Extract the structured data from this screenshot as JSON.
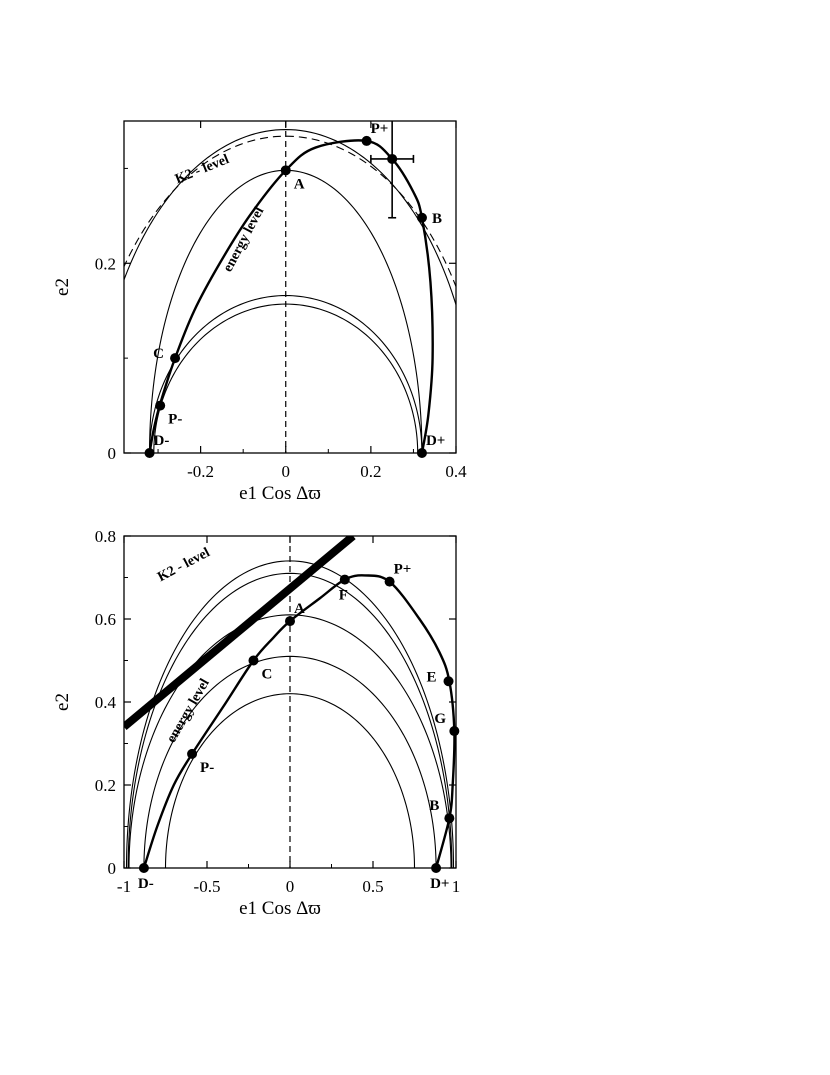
{
  "chart_data": [
    {
      "type": "line",
      "xlabel": "e1 Cos Δϖ",
      "ylabel": "e2",
      "xlim": [
        -0.38,
        0.4
      ],
      "ylim": [
        0,
        0.35
      ],
      "xticks": [
        -0.2,
        0,
        0.2,
        0.4
      ],
      "xtick_labels": [
        "-0.2",
        "0",
        "0.2",
        "0.4"
      ],
      "yticks": [
        0,
        0.2
      ],
      "ytick_labels": [
        "0",
        "0.2"
      ],
      "minor_xticks": [
        -0.3,
        -0.1,
        0.1,
        0.3
      ],
      "minor_yticks": [
        0.1,
        0.3
      ],
      "dashed_vertical_x": 0,
      "k2_arcs": [
        {
          "a": 0.32,
          "b": 0.298,
          "style": "solid"
        },
        {
          "a": 0.31,
          "b": 0.157,
          "style": "solid"
        },
        {
          "a": 0.32,
          "b": 0.166,
          "style": "solid"
        },
        {
          "a": 0.45,
          "b": 0.341,
          "style": "solid"
        },
        {
          "a": 0.47,
          "b": 0.334,
          "style": "dashed"
        }
      ],
      "energy_level": [
        [
          -0.32,
          0
        ],
        [
          -0.31,
          0.025
        ],
        [
          -0.295,
          0.052
        ],
        [
          -0.26,
          0.1
        ],
        [
          -0.215,
          0.15
        ],
        [
          -0.155,
          0.2
        ],
        [
          -0.085,
          0.25
        ],
        [
          0,
          0.298
        ],
        [
          0.07,
          0.322
        ],
        [
          0.19,
          0.329
        ],
        [
          0.25,
          0.31
        ],
        [
          0.3,
          0.275
        ],
        [
          0.32,
          0.248
        ],
        [
          0.34,
          0.18
        ],
        [
          0.345,
          0.1
        ],
        [
          0.335,
          0.04
        ],
        [
          0.32,
          0
        ]
      ],
      "points": [
        {
          "label": "A",
          "x": 0,
          "y": 0.298,
          "anchor": "right-below"
        },
        {
          "label": "P+",
          "x": 0.19,
          "y": 0.329,
          "anchor": "right-above"
        },
        {
          "label": "B",
          "x": 0.32,
          "y": 0.248,
          "anchor": "right"
        },
        {
          "label": "C",
          "x": -0.26,
          "y": 0.1,
          "anchor": "left"
        },
        {
          "label": "P-",
          "x": -0.295,
          "y": 0.05,
          "anchor": "right-below"
        },
        {
          "label": "D-",
          "x": -0.32,
          "y": 0,
          "anchor": "right-above"
        },
        {
          "label": "D+",
          "x": 0.32,
          "y": 0,
          "anchor": "right-above"
        }
      ],
      "observation": {
        "x": 0.25,
        "y": 0.31,
        "x_err": [
          0.2,
          0.3
        ],
        "y_err": [
          0.248,
          0.35
        ]
      },
      "annotations": [
        {
          "text": "K2 - level",
          "x": -0.255,
          "y": 0.284,
          "angle": -22
        },
        {
          "text": "energy level",
          "x": -0.13,
          "y": 0.19,
          "angle": -62
        }
      ]
    },
    {
      "type": "line",
      "xlabel": "e1 Cos Δϖ",
      "ylabel": "e2",
      "xlim": [
        -1,
        1
      ],
      "ylim": [
        0,
        0.8
      ],
      "xticks": [
        -1,
        -0.5,
        0,
        0.5,
        1
      ],
      "xtick_labels": [
        "-1",
        "-0.5",
        "0",
        "0.5",
        "1"
      ],
      "yticks": [
        0,
        0.2,
        0.4,
        0.6,
        0.8
      ],
      "ytick_labels": [
        "0",
        "0.2",
        "0.4",
        "0.6",
        "0.8"
      ],
      "minor_xticks": [
        -0.75,
        -0.25,
        0.25,
        0.75
      ],
      "minor_yticks": [
        0.1,
        0.3,
        0.5,
        0.7
      ],
      "dashed_vertical_x": 0,
      "k2_arcs": [
        {
          "a": 0.75,
          "b": 0.42,
          "style": "solid"
        },
        {
          "a": 0.88,
          "b": 0.51,
          "style": "solid"
        },
        {
          "a": 0.97,
          "b": 0.61,
          "style": "solid"
        },
        {
          "a": 0.975,
          "b": 0.71,
          "style": "solid"
        },
        {
          "a": 0.985,
          "b": 0.74,
          "style": "solid"
        }
      ],
      "energy_level": [
        [
          -0.88,
          0
        ],
        [
          -0.8,
          0.1
        ],
        [
          -0.7,
          0.2
        ],
        [
          -0.59,
          0.275
        ],
        [
          -0.4,
          0.39
        ],
        [
          -0.22,
          0.5
        ],
        [
          -0.1,
          0.555
        ],
        [
          0,
          0.595
        ],
        [
          0.18,
          0.65
        ],
        [
          0.33,
          0.695
        ],
        [
          0.45,
          0.705
        ],
        [
          0.6,
          0.69
        ],
        [
          0.78,
          0.6
        ],
        [
          0.9,
          0.52
        ],
        [
          0.96,
          0.45
        ],
        [
          0.99,
          0.33
        ],
        [
          0.98,
          0.2
        ],
        [
          0.96,
          0.12
        ],
        [
          0.88,
          0
        ]
      ],
      "points": [
        {
          "label": "A",
          "x": 0,
          "y": 0.595,
          "anchor": "right-above"
        },
        {
          "label": "C",
          "x": -0.22,
          "y": 0.5,
          "anchor": "right-below"
        },
        {
          "label": "F",
          "x": 0.33,
          "y": 0.695,
          "anchor": "below"
        },
        {
          "label": "P+",
          "x": 0.6,
          "y": 0.69,
          "anchor": "right-above"
        },
        {
          "label": "E",
          "x": 0.955,
          "y": 0.45,
          "anchor": "left"
        },
        {
          "label": "G",
          "x": 0.99,
          "y": 0.33,
          "anchor": "left-above"
        },
        {
          "label": "B",
          "x": 0.96,
          "y": 0.12,
          "anchor": "left-above"
        },
        {
          "label": "P-",
          "x": -0.59,
          "y": 0.275,
          "anchor": "right-below"
        },
        {
          "label": "D-",
          "x": -0.88,
          "y": 0,
          "anchor": "below"
        },
        {
          "label": "D+",
          "x": 0.88,
          "y": 0,
          "anchor": "below"
        }
      ],
      "stability_boundary": [
        [
          -1,
          0.34
        ],
        [
          0.38,
          0.8
        ]
      ],
      "annotations": [
        {
          "text": "K2 - level",
          "x": -0.78,
          "y": 0.69,
          "angle": -28
        },
        {
          "text": "energy level",
          "x": -0.7,
          "y": 0.3,
          "angle": -60
        }
      ]
    }
  ]
}
